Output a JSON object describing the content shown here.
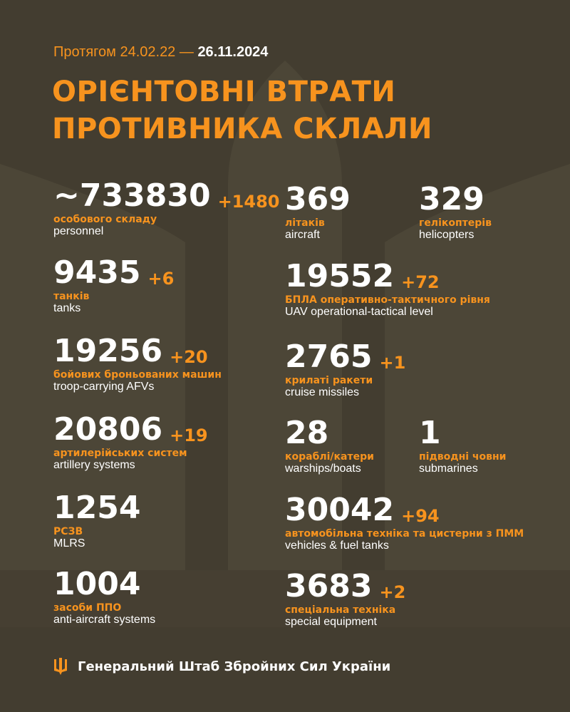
{
  "header": {
    "period_prefix": "Протягом 24.02.22 —",
    "period_end": "26.11.2024",
    "title_line1": "ОРІЄНТОВНІ ВТРАТИ",
    "title_line2": "ПРОТИВНИКА СКЛАЛИ"
  },
  "stats": [
    {
      "value": "~733830",
      "increase": "+1480",
      "label_ua": "особового складу",
      "label_en": "personnel"
    },
    {
      "value": "9435",
      "increase": "+6",
      "label_ua": "танків",
      "label_en": "tanks"
    },
    {
      "value": "19256",
      "increase": "+20",
      "label_ua": "бойових броньованих машин",
      "label_en": "troop-carrying AFVs"
    },
    {
      "value": "20806",
      "increase": "+19",
      "label_ua": "артилерійських систем",
      "label_en": "artillery systems"
    },
    {
      "value": "1254",
      "increase": "",
      "label_ua": "РСЗВ",
      "label_en": "MLRS"
    },
    {
      "value": "1004",
      "increase": "",
      "label_ua": "засоби ППО",
      "label_en": "anti-aircraft systems"
    },
    {
      "value": "369",
      "increase": "",
      "label_ua": "літаків",
      "label_en": "aircraft"
    },
    {
      "value": "329",
      "increase": "",
      "label_ua": "гелікоптерів",
      "label_en": "helicopters"
    },
    {
      "value": "19552",
      "increase": "+72",
      "label_ua": "БПЛА оперативно-тактичного рівня",
      "label_en": "UAV operational-tactical level"
    },
    {
      "value": "2765",
      "increase": "+1",
      "label_ua": "крилаті ракети",
      "label_en": "cruise missiles"
    },
    {
      "value": "28",
      "increase": "",
      "label_ua": "кораблі/катери",
      "label_en": "warships/boats"
    },
    {
      "value": "1",
      "increase": "",
      "label_ua": "підводні човни",
      "label_en": "submarines"
    },
    {
      "value": "30042",
      "increase": "+94",
      "label_ua": "автомобільна техніка та цистерни з ПММ",
      "label_en": "vehicles & fuel tanks"
    },
    {
      "value": "3683",
      "increase": "+2",
      "label_ua": "спеціальна техніка",
      "label_en": "special equipment"
    }
  ],
  "footer": {
    "text": "Генеральний Штаб Збройних Сил України",
    "icon": "trident-icon"
  },
  "colors": {
    "background": "#433d30",
    "accent": "#f7931e",
    "watermark": "#4c4637"
  }
}
